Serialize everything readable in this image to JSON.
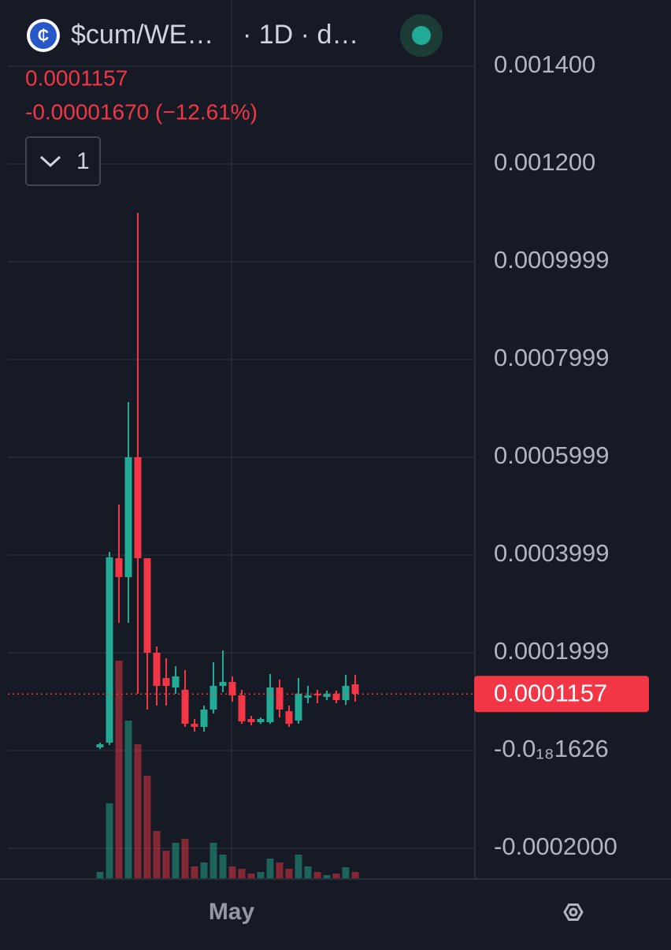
{
  "chart_data": {
    "type": "candlestick",
    "title": "$cum/WE…",
    "interval": "· 1D · d…",
    "last_price": 0.0001157,
    "change": "-0.00001670 (−12.61%)",
    "indicator_count": "1",
    "categories": [
      null,
      null,
      null,
      null,
      null,
      null,
      null,
      null,
      null,
      null,
      null,
      null,
      null,
      null,
      "May",
      null,
      null,
      null,
      null,
      null,
      null,
      null,
      null,
      null,
      null,
      null,
      null,
      null
    ],
    "open": [
      6.5e-06,
      1.61e-05,
      0.0003935,
      0.0003548,
      0.0006,
      0.0003935,
      0.0002,
      0.0001484,
      0.000129,
      0.0001242,
      5.48e-05,
      4.84e-05,
      8.39e-05,
      0.0001323,
      0.0001403,
      0.0001129,
      6.45e-05,
      5.81e-05,
      5.81e-05,
      0.000129,
      8.06e-05,
      6.13e-05,
      0.0001081,
      0.0001161,
      0.0001097,
      0.0001161,
      0.0001032,
      0.0001355
    ],
    "high": [
      1.61e-05,
      0.0004065,
      0.0005032,
      0.0007129,
      0.0011,
      0.0003935,
      0.0002129,
      0.0001887,
      0.0001726,
      0.0001645,
      6.45e-05,
      9.19e-05,
      0.0001806,
      0.0002048,
      0.0001516,
      0.0001242,
      7.1e-05,
      6.77e-05,
      0.0001565,
      0.0001452,
      9.19e-05,
      0.0001484,
      0.0001323,
      0.0001242,
      0.0001226,
      0.0001226,
      0.0001548,
      0.0001548
    ],
    "low": [
      3.2e-06,
      1.13e-05,
      0.0002613,
      0.0002613,
      0.0001161,
      8.39e-05,
      9.19e-05,
      9.19e-05,
      0.0001161,
      4.84e-05,
      3.87e-05,
      3.87e-05,
      7.58e-05,
      0.0001194,
      0.0001,
      5.48e-05,
      5.16e-05,
      5.48e-05,
      5.48e-05,
      6.77e-05,
      4.84e-05,
      5.48e-05,
      9.68e-05,
      9.68e-05,
      0.0001032,
      9.68e-05,
      9.35e-05,
      0.0001
    ],
    "close": [
      1.29e-05,
      0.0003952,
      0.0003548,
      0.0006,
      0.0003935,
      0.0002,
      0.0001323,
      0.0001323,
      0.0001516,
      5.48e-05,
      4.84e-05,
      8.39e-05,
      0.0001323,
      0.0001403,
      0.0001129,
      5.97e-05,
      5.81e-05,
      6.45e-05,
      0.000129,
      8.39e-05,
      5.48e-05,
      0.0001161,
      0.0001129,
      0.0001129,
      0.0001161,
      0.0001032,
      0.0001323,
      0.0001157
    ],
    "volume": [
      8,
      95,
      276,
      200,
      170,
      130,
      60,
      35,
      45,
      50,
      15,
      20,
      45,
      30,
      15,
      12,
      6,
      8,
      25,
      20,
      12,
      30,
      15,
      8,
      4,
      6,
      14,
      8
    ],
    "up_color": "#22ab94",
    "down_color": "#f23645",
    "ylim": [
      -0.0002613,
      0.0015355
    ],
    "yticks": [
      {
        "value": 0.0014,
        "label": "0.001400"
      },
      {
        "value": 0.0012,
        "label": "0.001200"
      },
      {
        "value": 0.001,
        "label": "0.0009999"
      },
      {
        "value": 0.0008,
        "label": "0.0007999"
      },
      {
        "value": 0.0006,
        "label": "0.0005999"
      },
      {
        "value": 0.0004,
        "label": "0.0003999"
      },
      {
        "value": 0.0002,
        "label": "0.0001999"
      },
      {
        "value": -1.626e-20,
        "label": "-0.0₁₈1626"
      },
      {
        "value": -0.0002,
        "label": "-0.0002000"
      }
    ],
    "grid": true
  }
}
